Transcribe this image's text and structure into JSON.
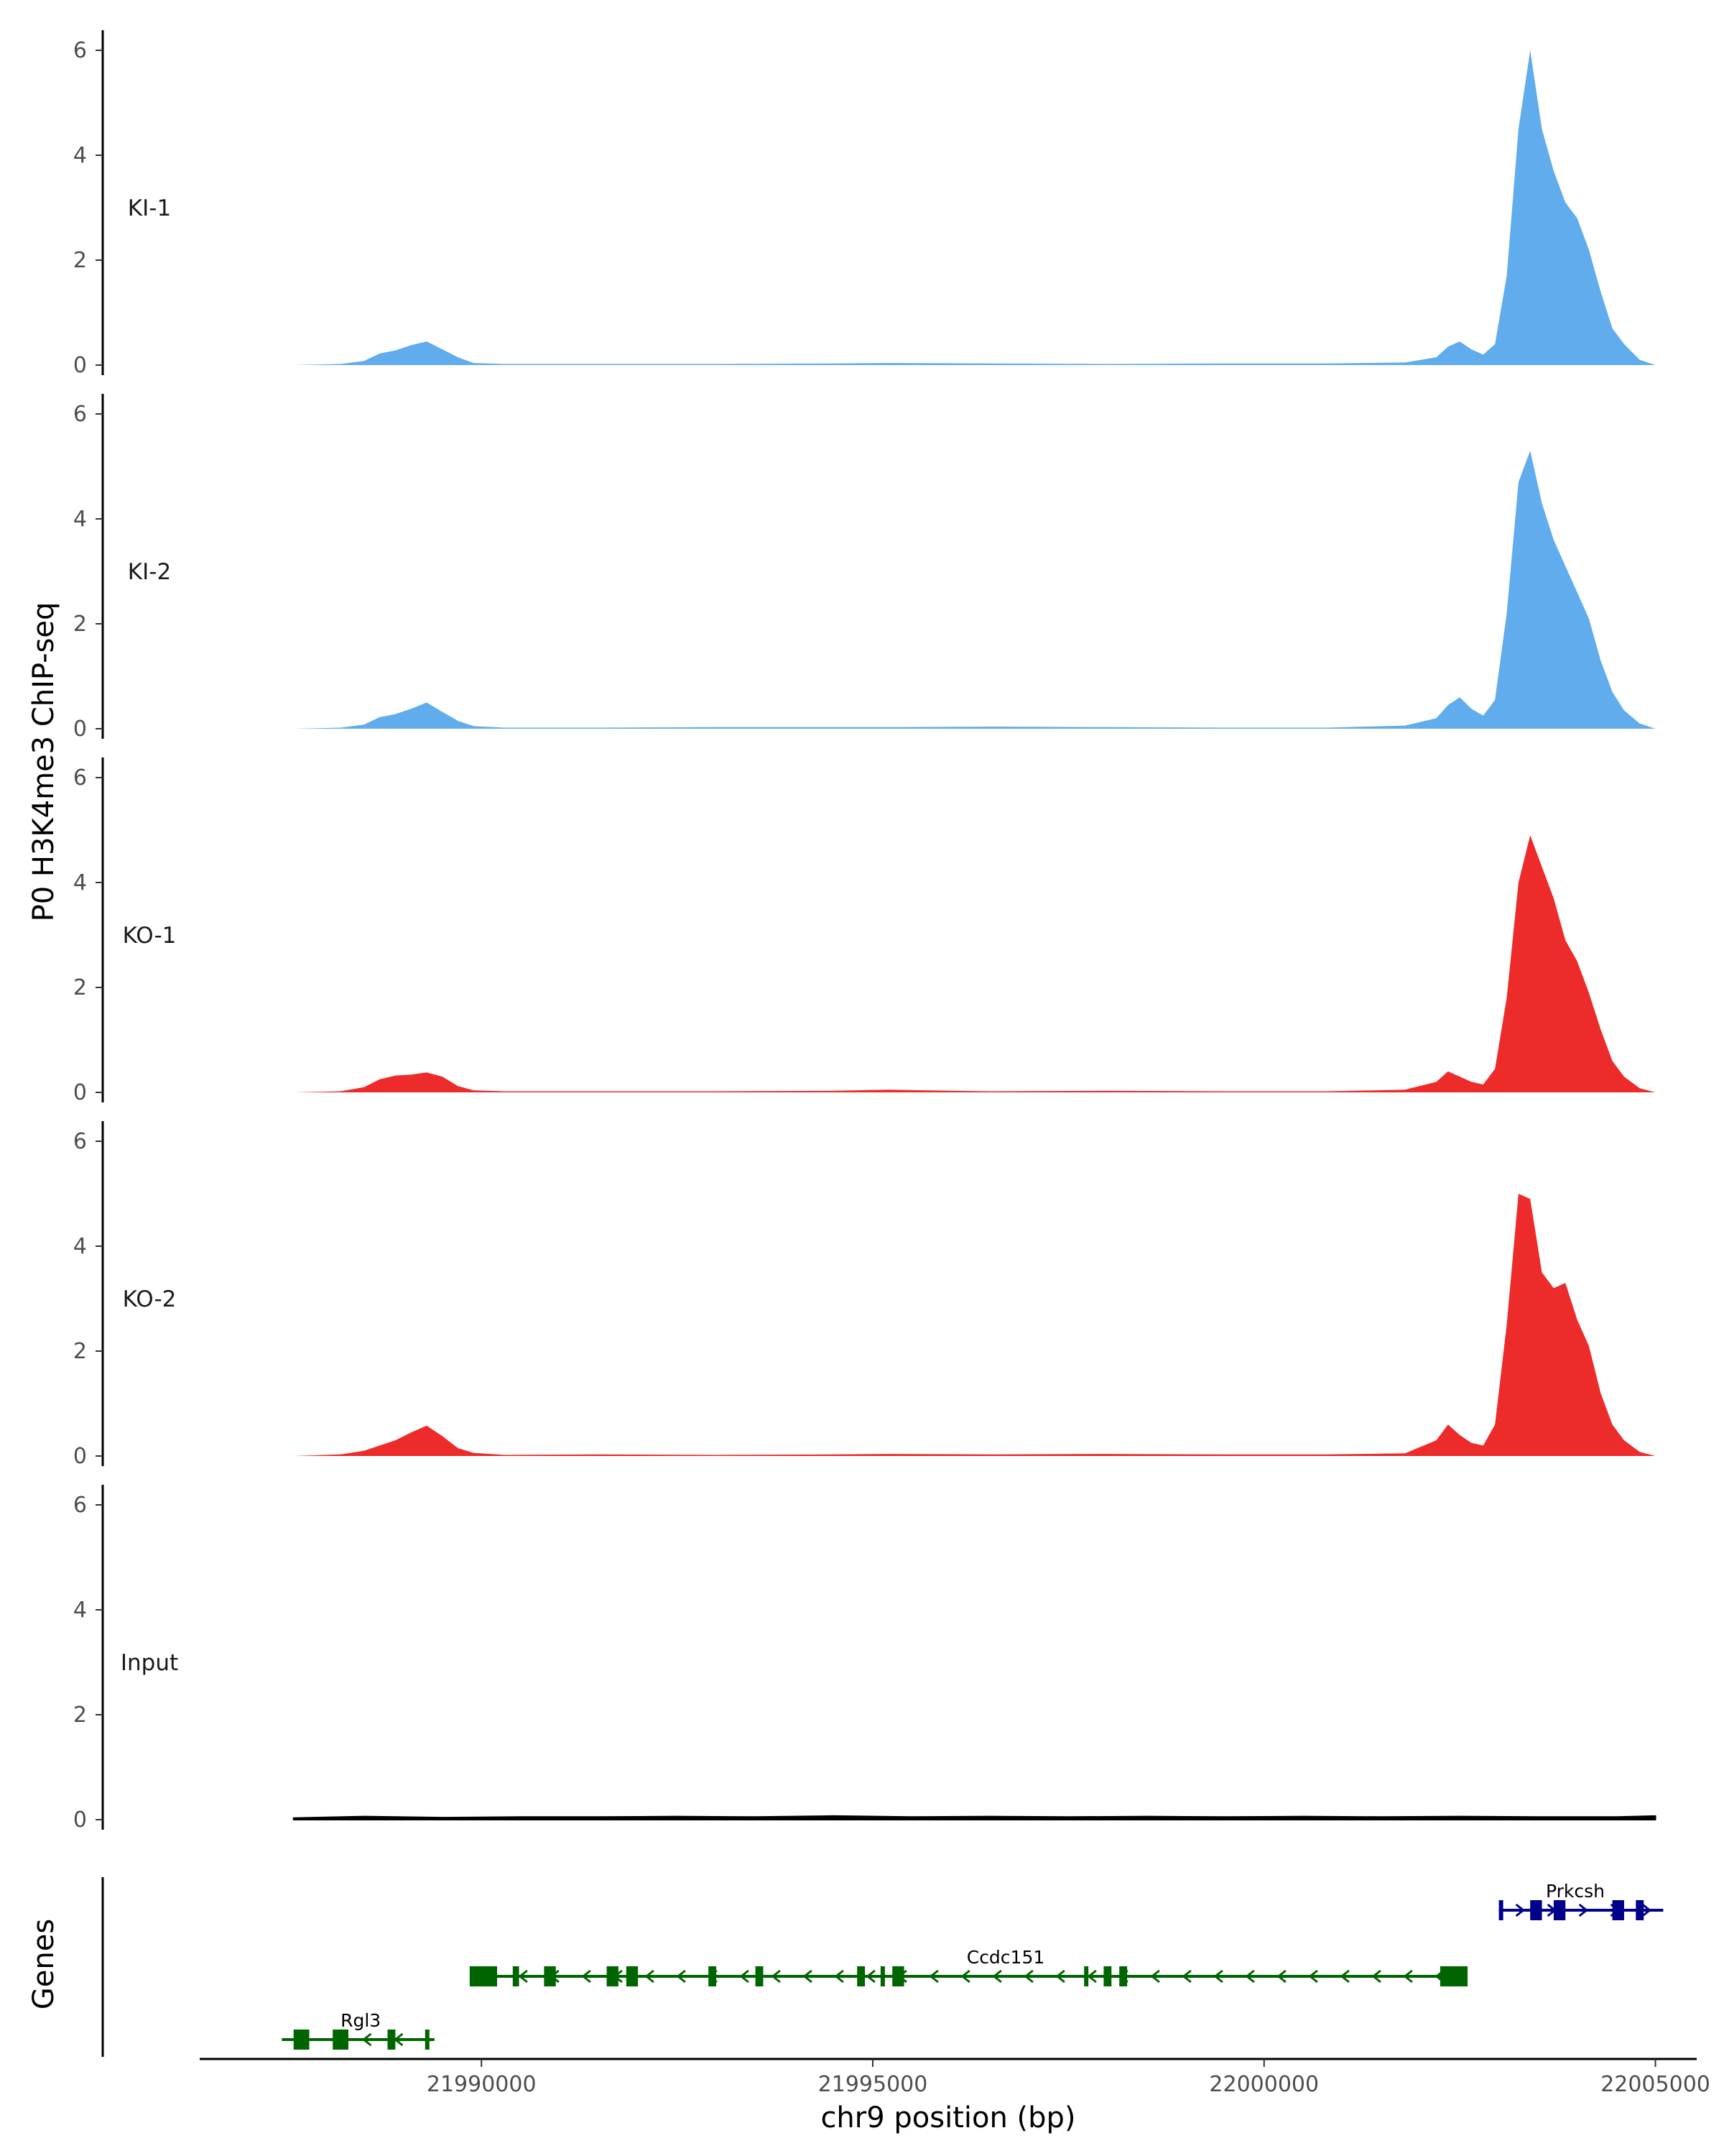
{
  "chart_data": {
    "type": "area",
    "ylabel": "P0 H3K4me3 ChIP-seq",
    "xlabel": "chr9 position (bp)",
    "genes_label": "Genes",
    "xlim": [
      21986400,
      22005500
    ],
    "ylim": [
      0,
      6.3
    ],
    "y_ticks": [
      0,
      2,
      4,
      6
    ],
    "x_ticks": [
      21990000,
      21995000,
      22000000,
      22005000
    ],
    "x_tick_labels": [
      "21990000",
      "21995000",
      "22000000",
      "22005000"
    ],
    "grid": false,
    "colors": {
      "KI": "#60acec",
      "KO": "#ee2b2b",
      "Input": "#000000",
      "gene_minus": "#006400",
      "gene_plus": "#00008b"
    },
    "tracks": [
      {
        "label": "KI-1",
        "color": "#60acec",
        "x": [
          21987600,
          21988200,
          21988500,
          21988700,
          21988900,
          21989100,
          21989300,
          21989500,
          21989700,
          21989900,
          21990300,
          21991500,
          21993000,
          21994500,
          21995200,
          21996500,
          21998000,
          21999500,
          22000800,
          22001800,
          22002200,
          22002350,
          22002500,
          22002650,
          22002800,
          22002950,
          22003100,
          22003250,
          22003400,
          22003550,
          22003700,
          22003850,
          22004000,
          22004150,
          22004300,
          22004450,
          22004600,
          22004800,
          22005000
        ],
        "y": [
          0,
          0.02,
          0.08,
          0.22,
          0.28,
          0.38,
          0.45,
          0.3,
          0.15,
          0.04,
          0.02,
          0.02,
          0.02,
          0.03,
          0.04,
          0.03,
          0.02,
          0.03,
          0.03,
          0.05,
          0.15,
          0.35,
          0.45,
          0.3,
          0.2,
          0.4,
          1.7,
          4.5,
          6.0,
          4.5,
          3.7,
          3.1,
          2.8,
          2.2,
          1.4,
          0.7,
          0.4,
          0.1,
          0
        ]
      },
      {
        "label": "KI-2",
        "color": "#60acec",
        "x": [
          21987600,
          21988200,
          21988500,
          21988700,
          21988900,
          21989100,
          21989300,
          21989500,
          21989700,
          21989900,
          21990300,
          21991500,
          21993000,
          21994500,
          21995200,
          21996500,
          21998000,
          21999500,
          22000800,
          22001800,
          22002200,
          22002350,
          22002500,
          22002650,
          22002800,
          22002950,
          22003100,
          22003250,
          22003400,
          22003550,
          22003700,
          22003850,
          22004000,
          22004150,
          22004300,
          22004450,
          22004600,
          22004800,
          22005000
        ],
        "y": [
          0,
          0.02,
          0.08,
          0.22,
          0.28,
          0.38,
          0.5,
          0.32,
          0.15,
          0.05,
          0.02,
          0.02,
          0.03,
          0.03,
          0.03,
          0.04,
          0.03,
          0.02,
          0.02,
          0.06,
          0.2,
          0.45,
          0.6,
          0.38,
          0.25,
          0.55,
          2.2,
          4.7,
          5.3,
          4.3,
          3.6,
          3.1,
          2.6,
          2.1,
          1.3,
          0.7,
          0.35,
          0.1,
          0
        ]
      },
      {
        "label": "KO-1",
        "color": "#ee2b2b",
        "x": [
          21987600,
          21988200,
          21988500,
          21988700,
          21988900,
          21989100,
          21989300,
          21989500,
          21989700,
          21989900,
          21990300,
          21991500,
          21993000,
          21994500,
          21995200,
          21996500,
          21998000,
          21999500,
          22000800,
          22001800,
          22002200,
          22002350,
          22002500,
          22002650,
          22002800,
          22002950,
          22003100,
          22003250,
          22003400,
          22003550,
          22003700,
          22003850,
          22004000,
          22004150,
          22004300,
          22004450,
          22004600,
          22004800,
          22005000
        ],
        "y": [
          0,
          0.02,
          0.1,
          0.25,
          0.32,
          0.34,
          0.38,
          0.3,
          0.12,
          0.04,
          0.02,
          0.02,
          0.02,
          0.03,
          0.05,
          0.02,
          0.03,
          0.02,
          0.02,
          0.05,
          0.2,
          0.4,
          0.3,
          0.2,
          0.15,
          0.45,
          1.8,
          4.0,
          4.9,
          4.3,
          3.7,
          2.9,
          2.5,
          1.9,
          1.2,
          0.6,
          0.3,
          0.08,
          0
        ]
      },
      {
        "label": "KO-2",
        "color": "#ee2b2b",
        "x": [
          21987600,
          21988200,
          21988500,
          21988700,
          21988900,
          21989100,
          21989300,
          21989500,
          21989700,
          21989900,
          21990300,
          21991500,
          21993000,
          21994500,
          21995200,
          21996500,
          21998000,
          21999500,
          22000800,
          22001800,
          22002200,
          22002350,
          22002500,
          22002650,
          22002800,
          22002950,
          22003100,
          22003250,
          22003400,
          22003550,
          22003700,
          22003850,
          22004000,
          22004150,
          22004300,
          22004450,
          22004600,
          22004800,
          22005000
        ],
        "y": [
          0,
          0.03,
          0.1,
          0.2,
          0.3,
          0.45,
          0.58,
          0.38,
          0.15,
          0.06,
          0.02,
          0.03,
          0.02,
          0.03,
          0.04,
          0.03,
          0.04,
          0.03,
          0.03,
          0.05,
          0.3,
          0.6,
          0.4,
          0.25,
          0.2,
          0.6,
          2.5,
          5.0,
          4.9,
          3.5,
          3.2,
          3.3,
          2.6,
          2.1,
          1.2,
          0.6,
          0.3,
          0.08,
          0
        ]
      },
      {
        "label": "Input",
        "color": "#000000",
        "x": [
          21987600,
          21988500,
          21989500,
          21990500,
          21991500,
          21992500,
          21993500,
          21994500,
          21995500,
          21996500,
          21997500,
          21998500,
          21999500,
          22000500,
          22001500,
          22002500,
          22003500,
          22004500,
          22005000
        ],
        "y": [
          0.03,
          0.06,
          0.04,
          0.05,
          0.05,
          0.06,
          0.05,
          0.07,
          0.05,
          0.06,
          0.05,
          0.06,
          0.05,
          0.06,
          0.05,
          0.06,
          0.05,
          0.05,
          0.07
        ]
      }
    ],
    "genes": [
      {
        "name": "Prkcsh",
        "strand": "+",
        "color": "#00008b",
        "row": 0,
        "start": 22003000,
        "end": 22005100,
        "label_x": 22003600,
        "exons": [
          [
            22003000,
            22003050
          ],
          [
            22003400,
            22003550
          ],
          [
            22003700,
            22003850
          ],
          [
            22004450,
            22004600
          ],
          [
            22004750,
            22004850
          ]
        ]
      },
      {
        "name": "Ccdc151",
        "strand": "-",
        "color": "#006400",
        "row": 1,
        "start": 21989850,
        "end": 22002600,
        "label_x": 21996200,
        "exons": [
          [
            21989850,
            21990200
          ],
          [
            21990400,
            21990480
          ],
          [
            21990800,
            21990950
          ],
          [
            21991600,
            21991750
          ],
          [
            21991850,
            21992000
          ],
          [
            21992900,
            21993000
          ],
          [
            21993500,
            21993600
          ],
          [
            21994800,
            21994900
          ],
          [
            21995100,
            21995150
          ],
          [
            21995250,
            21995400
          ],
          [
            21997950,
            21998050
          ],
          [
            21998150,
            21998250
          ],
          [
            21997700,
            21997720
          ],
          [
            22002250,
            22002600
          ]
        ]
      },
      {
        "name": "Rgl3",
        "strand": "-",
        "color": "#006400",
        "row": 2,
        "start": 21987450,
        "end": 21989400,
        "label_x": 21988200,
        "exons": [
          [
            21987600,
            21987800
          ],
          [
            21988100,
            21988300
          ],
          [
            21988800,
            21988900
          ],
          [
            21989280,
            21989330
          ]
        ]
      }
    ]
  }
}
